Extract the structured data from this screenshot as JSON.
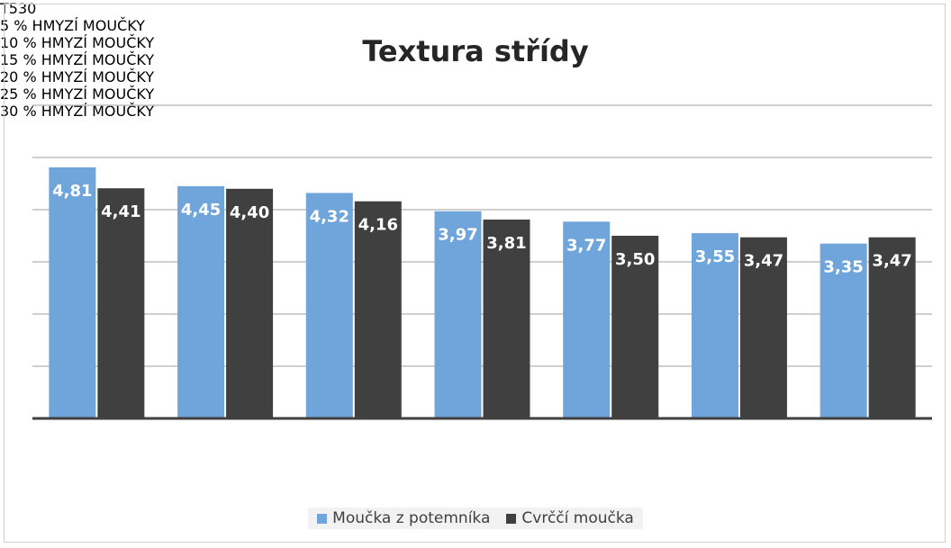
{
  "chart_data": {
    "type": "bar",
    "title": "Textura střídy",
    "categories": [
      "T530",
      "5 % HMYZÍ MOUČKY",
      "10 % HMYZÍ MOUČKY",
      "15 % HMYZÍ MOUČKY",
      "20 % HMYZÍ MOUČKY",
      "25 % HMYZÍ MOUČKY",
      "30 % HMYZÍ MOUČKY"
    ],
    "series": [
      {
        "name": "Moučka z potemníka",
        "color": "#6fa5db",
        "values": [
          4.81,
          4.45,
          4.32,
          3.97,
          3.77,
          3.55,
          3.35
        ],
        "value_labels": [
          "4,81",
          "4,45",
          "4,32",
          "3,97",
          "3,77",
          "3,55",
          "3,35"
        ]
      },
      {
        "name": "Cvrččí moučka",
        "color": "#404040",
        "values": [
          4.41,
          4.4,
          4.16,
          3.81,
          3.5,
          3.47,
          3.47
        ],
        "value_labels": [
          "4,41",
          "4,40",
          "4,16",
          "3,81",
          "3,50",
          "3,47",
          "3,47"
        ]
      }
    ],
    "ylim": [
      0,
      6
    ],
    "yticks": [
      0,
      1,
      2,
      3,
      4,
      5,
      6
    ],
    "grid": true,
    "legend": "bottom"
  }
}
